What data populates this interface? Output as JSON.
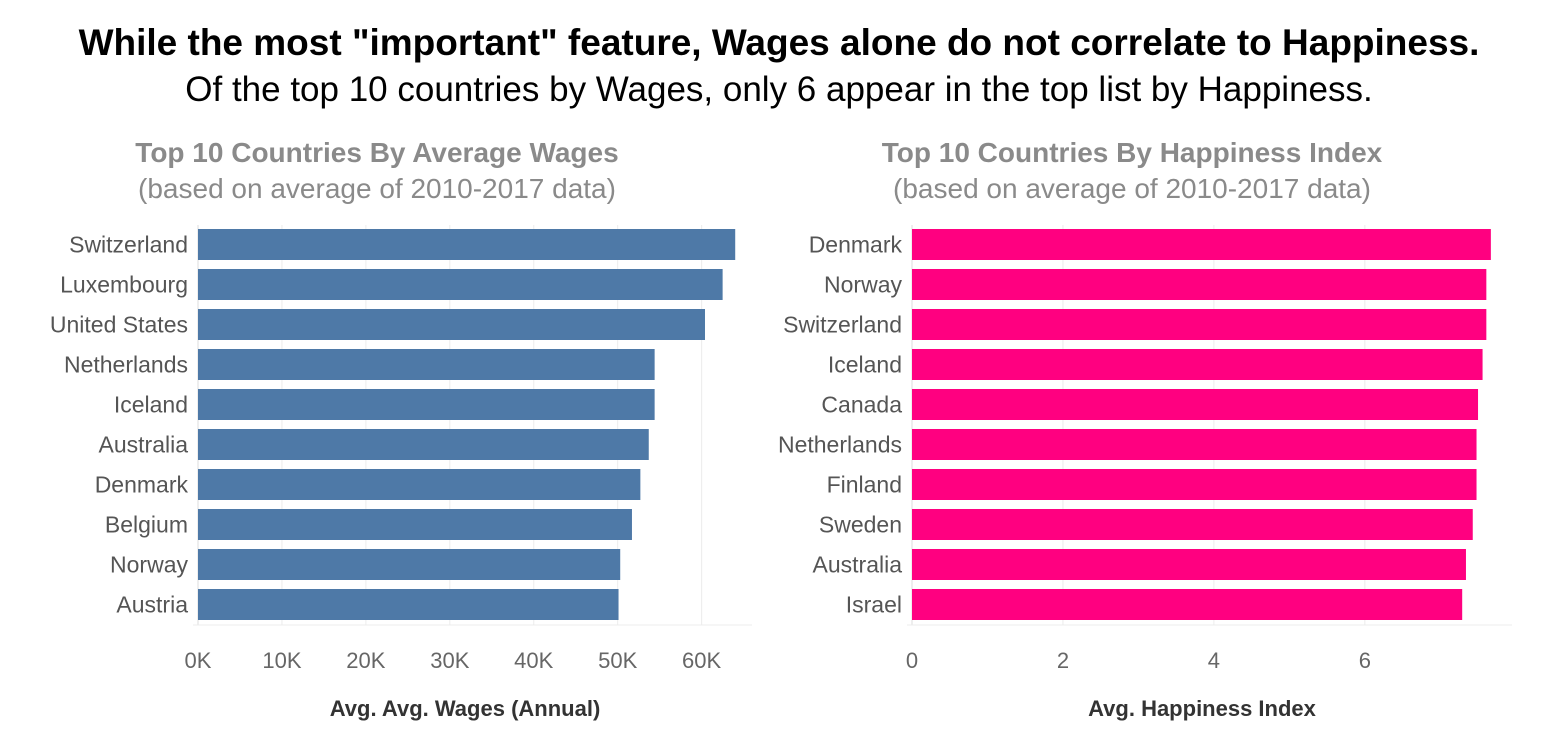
{
  "headline": {
    "title": "While the most \"important\" feature, Wages alone do not correlate to Happiness.",
    "subtitle": "Of the top 10 countries by Wages, only 6 appear in the top list by Happiness."
  },
  "chart_data": [
    {
      "type": "bar",
      "orientation": "horizontal",
      "title": "Top 10 Countries By Average Wages",
      "subtitle": "(based on average of 2010-2017 data)",
      "xlabel": "Avg. Avg. Wages (Annual)",
      "ylabel": "",
      "xlim": [
        0,
        66000
      ],
      "ticks": [
        0,
        10000,
        20000,
        30000,
        40000,
        50000,
        60000
      ],
      "tick_labels": [
        "0K",
        "10K",
        "20K",
        "30K",
        "40K",
        "50K",
        "60K"
      ],
      "grid": true,
      "color": "#4e79a7",
      "categories": [
        "Switzerland",
        "Luxembourg",
        "United States",
        "Netherlands",
        "Iceland",
        "Australia",
        "Denmark",
        "Belgium",
        "Norway",
        "Austria"
      ],
      "values": [
        64000,
        62500,
        60400,
        54400,
        54400,
        53700,
        52700,
        51700,
        50300,
        50100
      ]
    },
    {
      "type": "bar",
      "orientation": "horizontal",
      "title": "Top 10 Countries By Happiness Index",
      "subtitle": "(based on average of 2010-2017 data)",
      "xlabel": "Avg. Happiness Index",
      "ylabel": "",
      "xlim": [
        0,
        7.95
      ],
      "ticks": [
        0,
        2,
        4,
        6
      ],
      "tick_labels": [
        "0",
        "2",
        "4",
        "6"
      ],
      "grid": true,
      "color": "#ff0080",
      "categories": [
        "Denmark",
        "Norway",
        "Switzerland",
        "Iceland",
        "Canada",
        "Netherlands",
        "Finland",
        "Sweden",
        "Australia",
        "Israel"
      ],
      "values": [
        7.67,
        7.61,
        7.61,
        7.56,
        7.5,
        7.48,
        7.48,
        7.43,
        7.34,
        7.29
      ]
    }
  ]
}
